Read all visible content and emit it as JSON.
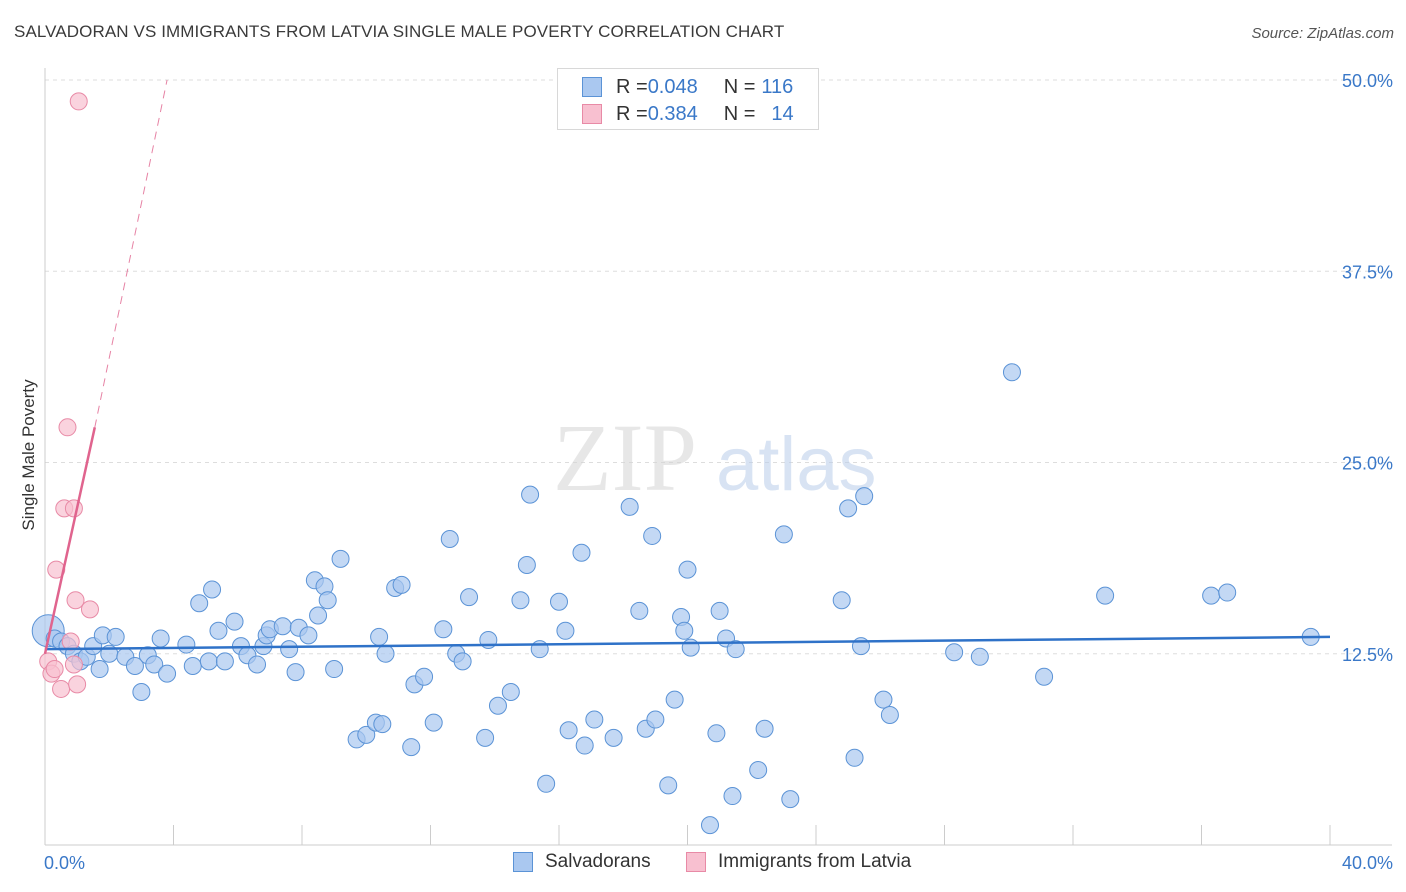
{
  "header": {
    "title": "SALVADORAN VS IMMIGRANTS FROM LATVIA SINGLE MALE POVERTY CORRELATION CHART",
    "source": "Source: ZipAtlas.com"
  },
  "watermark": {
    "part1": "ZIP",
    "part2": "atlas"
  },
  "legend_top": {
    "rows": [
      {
        "r_label": "R = ",
        "r_value": "0.048",
        "n_label": "N = ",
        "n_value": "116"
      },
      {
        "r_label": "R = ",
        "r_value": "0.384",
        "n_label": "N = ",
        "n_value": "14"
      }
    ]
  },
  "colors": {
    "blue_fill": "#aac8f0",
    "blue_stroke": "#5b93d6",
    "blue_line": "#2f72c8",
    "pink_fill": "#f8c0d0",
    "pink_stroke": "#e88aa6",
    "pink_line": "#e0648e",
    "axis_label": "#3a78c8",
    "grid": "#dddddd"
  },
  "chart_data": {
    "type": "scatter",
    "title": "SALVADORAN VS IMMIGRANTS FROM LATVIA SINGLE MALE POVERTY CORRELATION CHART",
    "ylabel": "Single Male Poverty",
    "xlabel": "",
    "xlim": [
      0,
      40
    ],
    "ylim": [
      0,
      50
    ],
    "x_tick_labels": [
      "0.0%",
      "40.0%"
    ],
    "y_ticks": [
      12.5,
      25.0,
      37.5,
      50.0
    ],
    "y_tick_labels": [
      "12.5%",
      "25.0%",
      "37.5%",
      "50.0%"
    ],
    "grid": "horizontal dashed",
    "legend_placement": "top-center and bottom",
    "series": [
      {
        "name": "Salvadorans",
        "R": 0.048,
        "N": 116,
        "trend": {
          "x": [
            0,
            40
          ],
          "y": [
            12.8,
            13.6
          ]
        },
        "points": [
          [
            0.1,
            14.0
          ],
          [
            0.3,
            13.5
          ],
          [
            0.5,
            13.3
          ],
          [
            0.7,
            13.0
          ],
          [
            0.9,
            12.5
          ],
          [
            1.1,
            12.0
          ],
          [
            1.3,
            12.3
          ],
          [
            1.5,
            13.0
          ],
          [
            1.7,
            11.5
          ],
          [
            1.8,
            13.7
          ],
          [
            2.0,
            12.5
          ],
          [
            2.2,
            13.6
          ],
          [
            2.5,
            12.3
          ],
          [
            2.8,
            11.7
          ],
          [
            3.0,
            10.0
          ],
          [
            3.2,
            12.4
          ],
          [
            3.4,
            11.8
          ],
          [
            3.6,
            13.5
          ],
          [
            3.8,
            11.2
          ],
          [
            4.4,
            13.1
          ],
          [
            4.6,
            11.7
          ],
          [
            4.8,
            15.8
          ],
          [
            5.1,
            12.0
          ],
          [
            5.2,
            16.7
          ],
          [
            5.4,
            14.0
          ],
          [
            5.6,
            12.0
          ],
          [
            5.9,
            14.6
          ],
          [
            6.1,
            13.0
          ],
          [
            6.3,
            12.4
          ],
          [
            6.6,
            11.8
          ],
          [
            6.8,
            13.0
          ],
          [
            6.9,
            13.7
          ],
          [
            7.0,
            14.1
          ],
          [
            7.4,
            14.3
          ],
          [
            7.6,
            12.8
          ],
          [
            7.8,
            11.3
          ],
          [
            7.9,
            14.2
          ],
          [
            8.2,
            13.7
          ],
          [
            8.4,
            17.3
          ],
          [
            8.5,
            15.0
          ],
          [
            8.7,
            16.9
          ],
          [
            8.8,
            16.0
          ],
          [
            9.0,
            11.5
          ],
          [
            9.2,
            18.7
          ],
          [
            9.7,
            6.9
          ],
          [
            10.0,
            7.2
          ],
          [
            10.3,
            8.0
          ],
          [
            10.4,
            13.6
          ],
          [
            10.5,
            7.9
          ],
          [
            10.6,
            12.5
          ],
          [
            10.9,
            16.8
          ],
          [
            11.1,
            17.0
          ],
          [
            11.4,
            6.4
          ],
          [
            11.5,
            10.5
          ],
          [
            11.8,
            11.0
          ],
          [
            12.1,
            8.0
          ],
          [
            12.4,
            14.1
          ],
          [
            12.6,
            20.0
          ],
          [
            12.8,
            12.5
          ],
          [
            13.0,
            12.0
          ],
          [
            13.2,
            16.2
          ],
          [
            13.7,
            7.0
          ],
          [
            13.8,
            13.4
          ],
          [
            14.1,
            9.1
          ],
          [
            14.5,
            10.0
          ],
          [
            14.8,
            16.0
          ],
          [
            15.0,
            18.3
          ],
          [
            15.1,
            22.9
          ],
          [
            15.4,
            12.8
          ],
          [
            15.6,
            4.0
          ],
          [
            16.0,
            15.9
          ],
          [
            16.2,
            14.0
          ],
          [
            16.3,
            7.5
          ],
          [
            16.7,
            19.1
          ],
          [
            16.8,
            6.5
          ],
          [
            17.1,
            8.2
          ],
          [
            17.7,
            7.0
          ],
          [
            18.2,
            22.1
          ],
          [
            18.5,
            15.3
          ],
          [
            18.7,
            7.6
          ],
          [
            18.9,
            20.2
          ],
          [
            19.0,
            8.2
          ],
          [
            19.4,
            3.9
          ],
          [
            19.6,
            9.5
          ],
          [
            19.8,
            14.9
          ],
          [
            19.9,
            14.0
          ],
          [
            20.0,
            18.0
          ],
          [
            20.1,
            12.9
          ],
          [
            20.7,
            1.3
          ],
          [
            20.9,
            7.3
          ],
          [
            21.0,
            15.3
          ],
          [
            21.2,
            13.5
          ],
          [
            21.4,
            3.2
          ],
          [
            21.5,
            12.8
          ],
          [
            22.2,
            4.9
          ],
          [
            22.4,
            7.6
          ],
          [
            23.0,
            20.3
          ],
          [
            23.2,
            3.0
          ],
          [
            24.8,
            16.0
          ],
          [
            25.0,
            22.0
          ],
          [
            25.2,
            5.7
          ],
          [
            25.4,
            13.0
          ],
          [
            25.5,
            22.8
          ],
          [
            26.1,
            9.5
          ],
          [
            26.3,
            8.5
          ],
          [
            28.3,
            12.6
          ],
          [
            29.1,
            12.3
          ],
          [
            30.1,
            30.9
          ],
          [
            31.1,
            11.0
          ],
          [
            33.0,
            16.3
          ],
          [
            36.3,
            16.3
          ],
          [
            36.8,
            16.5
          ],
          [
            39.4,
            13.6
          ]
        ]
      },
      {
        "name": "Immigrants from Latvia",
        "R": 0.384,
        "N": 14,
        "trend": {
          "x": [
            0,
            1.55
          ],
          "y": [
            12.5,
            27.3
          ],
          "extended_x": [
            1.55,
            3.8
          ],
          "extended_y": [
            27.3,
            50.0
          ]
        },
        "points": [
          [
            0.1,
            12.0
          ],
          [
            0.2,
            11.2
          ],
          [
            0.3,
            11.5
          ],
          [
            0.35,
            18.0
          ],
          [
            0.5,
            10.2
          ],
          [
            0.6,
            22.0
          ],
          [
            0.7,
            27.3
          ],
          [
            0.8,
            13.3
          ],
          [
            0.9,
            22.0
          ],
          [
            0.9,
            11.8
          ],
          [
            0.95,
            16.0
          ],
          [
            1.0,
            10.5
          ],
          [
            1.4,
            15.4
          ],
          [
            1.05,
            48.6
          ]
        ]
      }
    ]
  },
  "legend_bottom": {
    "items": [
      "Salvadorans",
      "Immigrants from Latvia"
    ]
  }
}
